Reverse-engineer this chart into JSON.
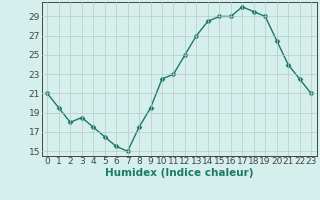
{
  "x": [
    0,
    1,
    2,
    3,
    4,
    5,
    6,
    7,
    8,
    9,
    10,
    11,
    12,
    13,
    14,
    15,
    16,
    17,
    18,
    19,
    20,
    21,
    22,
    23
  ],
  "y": [
    21,
    19.5,
    18,
    18.5,
    17.5,
    16.5,
    15.5,
    15,
    17.5,
    19.5,
    22.5,
    23,
    25,
    27,
    28.5,
    29,
    29,
    30,
    29.5,
    29,
    26.5,
    24,
    22.5,
    21
  ],
  "line_color": "#1a7a65",
  "marker": "D",
  "marker_size": 2.5,
  "bg_color": "#d5f0ec",
  "grid_color": "#b8c8c5",
  "xlabel": "Humidex (Indice chaleur)",
  "xlim": [
    -0.5,
    23.5
  ],
  "ylim": [
    14.5,
    30.5
  ],
  "xticks": [
    0,
    1,
    2,
    3,
    4,
    5,
    6,
    7,
    8,
    9,
    10,
    11,
    12,
    13,
    14,
    15,
    16,
    17,
    18,
    19,
    20,
    21,
    22,
    23
  ],
  "yticks": [
    15,
    17,
    19,
    21,
    23,
    25,
    27,
    29
  ],
  "tick_fontsize": 6.5,
  "xlabel_fontsize": 7.5,
  "axis_color": "#444444",
  "xlabel_color": "#1a7a65"
}
